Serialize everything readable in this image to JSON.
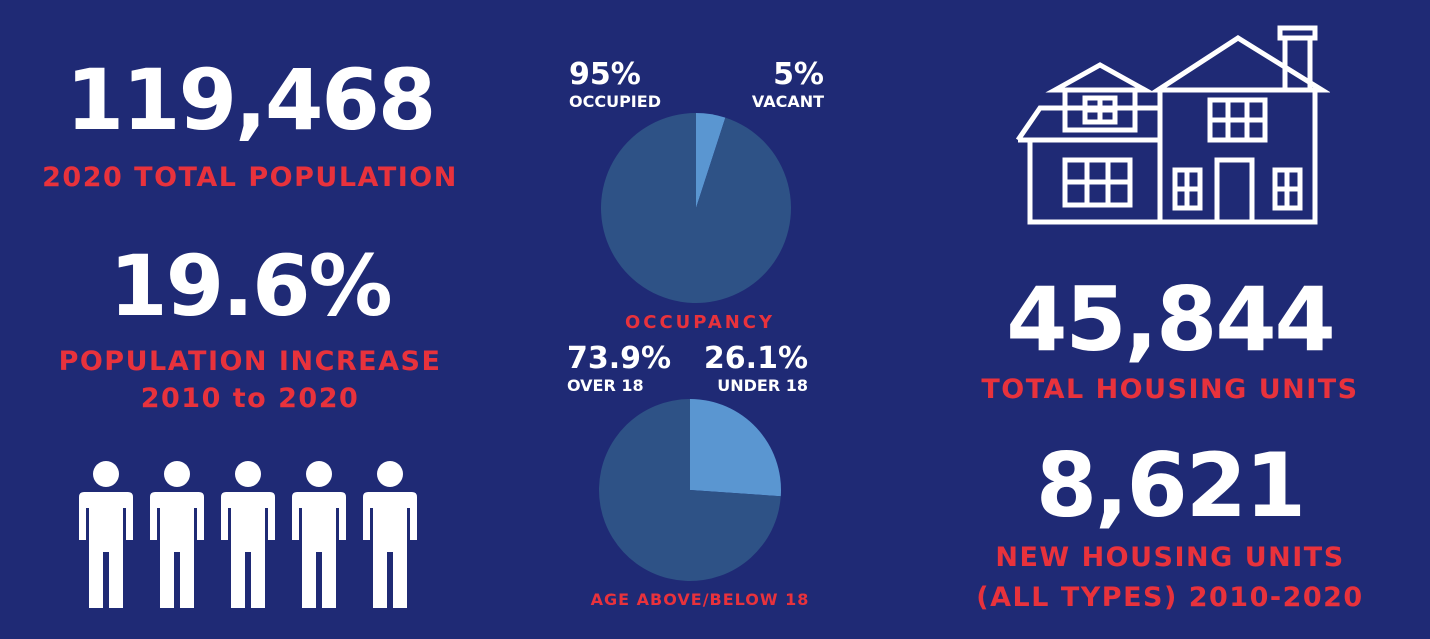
{
  "left": {
    "population_value": "119,468",
    "population_label": "2020 TOTAL POPULATION",
    "increase_value": "19.6%",
    "increase_label_1": "POPULATION INCREASE",
    "increase_label_2": "2010 to 2020",
    "people_icon_count": 5
  },
  "right": {
    "housing_units_value": "45,844",
    "housing_units_label": "TOTAL HOUSING UNITS",
    "new_units_value": "8,621",
    "new_units_label_1": "NEW HOUSING UNITS",
    "new_units_label_2": "(ALL TYPES) 2010-2020"
  },
  "colors": {
    "background": "#1f2a75",
    "accent_red": "#e8323c",
    "pie_dark": "#2e5286",
    "pie_light": "#5a96d1",
    "text": "#ffffff"
  },
  "chart_data": [
    {
      "type": "pie",
      "title": "OCCUPANCY",
      "slices": [
        {
          "pct": "95%",
          "label": "OCCUPIED",
          "value": 95
        },
        {
          "pct": "5%",
          "label": "VACANT",
          "value": 5
        }
      ]
    },
    {
      "type": "pie",
      "title": "AGE ABOVE/BELOW 18",
      "slices": [
        {
          "pct": "73.9%",
          "label": "OVER 18",
          "value": 73.9
        },
        {
          "pct": "26.1%",
          "label": "UNDER 18",
          "value": 26.1
        }
      ]
    }
  ]
}
